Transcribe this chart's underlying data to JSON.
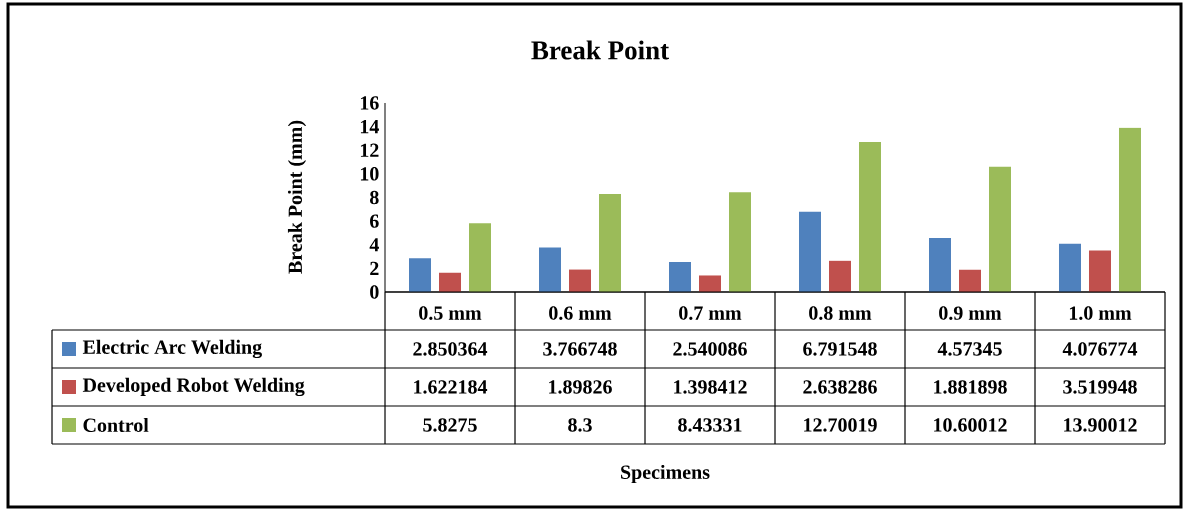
{
  "chart_data": {
    "type": "bar",
    "title": "Break Point",
    "annotations": [
      "Specimens"
    ],
    "ylabel": "Break Point (mm)",
    "categories": [
      "0.5 mm",
      "0.6 mm",
      "0.7 mm",
      "0.8 mm",
      "0.9 mm",
      "1.0 mm"
    ],
    "series": [
      {
        "name": "Electric Arc Welding",
        "color": "#4f81bd",
        "values": [
          2.850364,
          3.766748,
          2.540086,
          6.791548,
          4.57345,
          4.076774
        ]
      },
      {
        "name": "Developed Robot Welding",
        "color": "#c0504d",
        "values": [
          1.622184,
          1.89826,
          1.398412,
          2.638286,
          1.881898,
          3.519948
        ]
      },
      {
        "name": "Control",
        "color": "#9bbb59",
        "values": [
          5.8275,
          8.3,
          8.43331,
          12.70019,
          10.60012,
          13.90012
        ]
      }
    ],
    "ylim": [
      0,
      16
    ],
    "yticks": [
      0,
      2,
      4,
      6,
      8,
      10,
      12,
      14,
      16
    ],
    "data_labels": true,
    "legend": "bottom"
  }
}
